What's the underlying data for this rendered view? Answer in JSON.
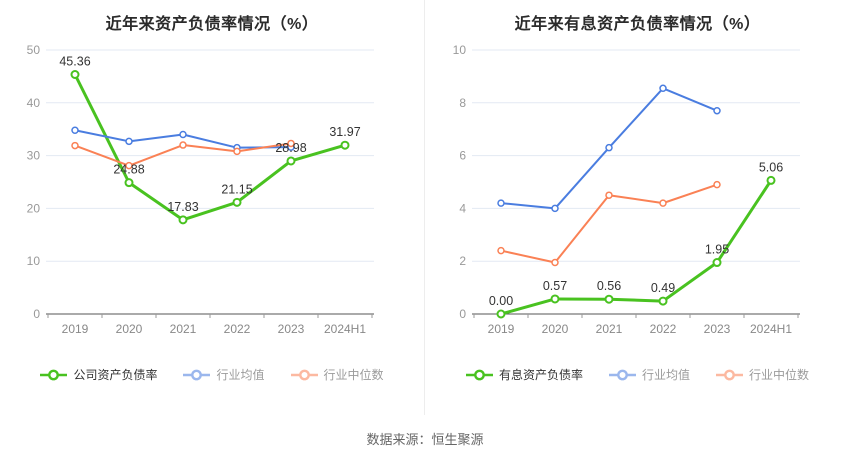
{
  "footer": {
    "source": "数据来源：恒生聚源"
  },
  "colors": {
    "company_green": "#49c220",
    "industry_mean_blue": "#4a7de0",
    "industry_median_orange": "#fa8155",
    "gridline": "#e3e9f3",
    "axis_line": "#555555",
    "tick_label": "#999999",
    "x_label": "#888888",
    "data_label": "#333333"
  },
  "chart_data": [
    {
      "type": "line",
      "title": "近年来资产负债率情况（%）",
      "categories": [
        "2019",
        "2020",
        "2021",
        "2022",
        "2023",
        "2024H1"
      ],
      "y_ticks": [
        0,
        10,
        20,
        30,
        40,
        50
      ],
      "ylim": [
        0,
        50
      ],
      "grid": true,
      "legend_position": "bottom",
      "series": [
        {
          "name": "公司资产负债率",
          "color": "#49c220",
          "values": [
            45.36,
            24.88,
            17.83,
            21.15,
            28.98,
            31.97
          ],
          "labels": [
            "45.36",
            "24.88",
            "17.83",
            "21.15",
            "28.98",
            "31.97"
          ],
          "show_labels": true,
          "muted": false
        },
        {
          "name": "行业均值",
          "color": "#4a7de0",
          "values": [
            34.8,
            32.7,
            34.0,
            31.5,
            31.6,
            null
          ],
          "show_labels": false,
          "muted": true
        },
        {
          "name": "行业中位数",
          "color": "#fa8155",
          "values": [
            31.9,
            28.1,
            32.0,
            30.8,
            32.3,
            null
          ],
          "show_labels": false,
          "muted": true
        }
      ]
    },
    {
      "type": "line",
      "title": "近年来有息资产负债率情况（%）",
      "categories": [
        "2019",
        "2020",
        "2021",
        "2022",
        "2023",
        "2024H1"
      ],
      "y_ticks": [
        0,
        2,
        4,
        6,
        8,
        10
      ],
      "ylim": [
        0,
        10
      ],
      "grid": true,
      "legend_position": "bottom",
      "series": [
        {
          "name": "有息资产负债率",
          "color": "#49c220",
          "values": [
            0.0,
            0.57,
            0.56,
            0.49,
            1.95,
            5.06
          ],
          "labels": [
            "0.00",
            "0.57",
            "0.56",
            "0.49",
            "1.95",
            "5.06"
          ],
          "show_labels": true,
          "muted": false
        },
        {
          "name": "行业均值",
          "color": "#4a7de0",
          "values": [
            4.2,
            4.0,
            6.3,
            8.55,
            7.7,
            null
          ],
          "show_labels": false,
          "muted": true
        },
        {
          "name": "行业中位数",
          "color": "#fa8155",
          "values": [
            2.4,
            1.95,
            4.5,
            4.2,
            4.9,
            null
          ],
          "show_labels": false,
          "muted": true
        }
      ]
    }
  ]
}
